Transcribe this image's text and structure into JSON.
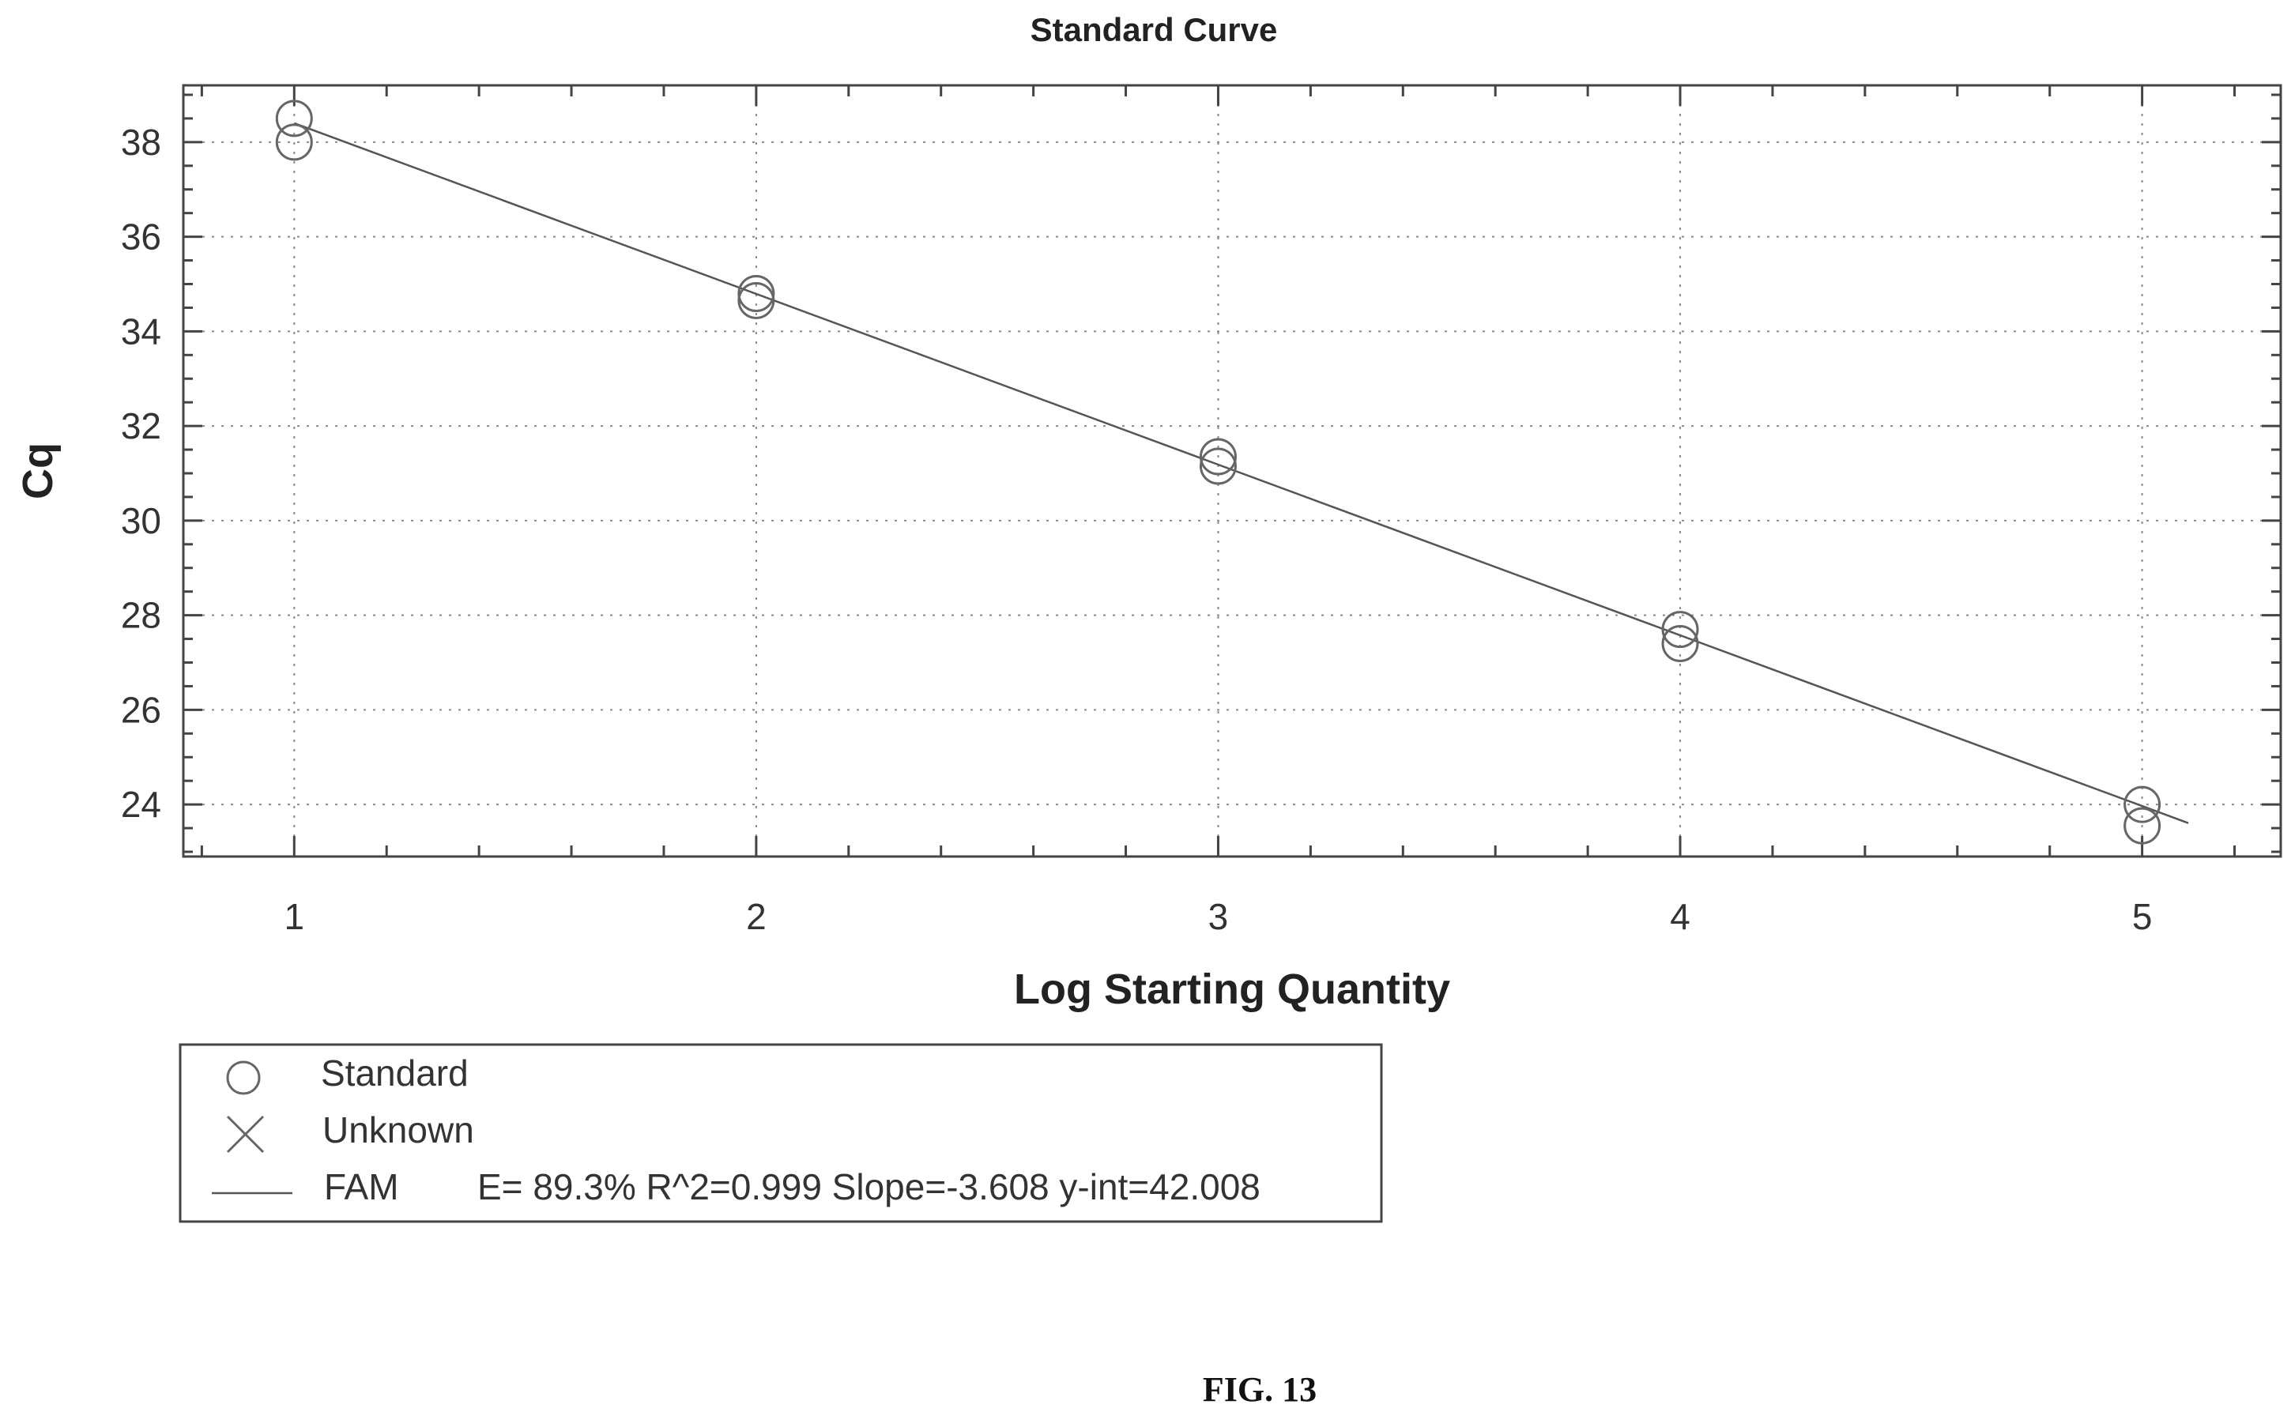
{
  "chart_data": {
    "type": "scatter",
    "title": "Standard Curve",
    "xlabel": "Log Starting Quantity",
    "ylabel": "Cq",
    "xlim": [
      0.76,
      5.3
    ],
    "ylim": [
      22.9,
      39.2
    ],
    "xticks": [
      1,
      2,
      3,
      4,
      5
    ],
    "yticks": [
      24,
      26,
      28,
      30,
      32,
      34,
      36,
      38
    ],
    "grid": true,
    "legend_position": "bottom-left",
    "series": [
      {
        "name": "Standard",
        "marker": "circle",
        "points": [
          {
            "x": 1,
            "y": 38.5
          },
          {
            "x": 1,
            "y": 38.0
          },
          {
            "x": 2,
            "y": 34.8
          },
          {
            "x": 2,
            "y": 34.65
          },
          {
            "x": 3,
            "y": 31.35
          },
          {
            "x": 3,
            "y": 31.15
          },
          {
            "x": 4,
            "y": 27.7
          },
          {
            "x": 4,
            "y": 27.4
          },
          {
            "x": 5,
            "y": 24.0
          },
          {
            "x": 5,
            "y": 23.55
          }
        ]
      },
      {
        "name": "Unknown",
        "marker": "x",
        "points": []
      },
      {
        "name": "FAM",
        "type": "line",
        "slope": -3.608,
        "intercept": 42.008,
        "x_range": [
          1,
          5.1
        ]
      }
    ],
    "legend": [
      {
        "symbol": "circle",
        "label": "Standard"
      },
      {
        "symbol": "x",
        "label": "Unknown"
      },
      {
        "symbol": "line",
        "label": "FAM",
        "stats": "E= 89.3% R^2=0.999 Slope=-3.608 y-int=42.008"
      }
    ]
  },
  "figure_caption": "FIG. 13",
  "colors": {
    "frame": "#444444",
    "grid": "#8a8a8a",
    "marker": "#666666",
    "fit_line": "#555555"
  }
}
